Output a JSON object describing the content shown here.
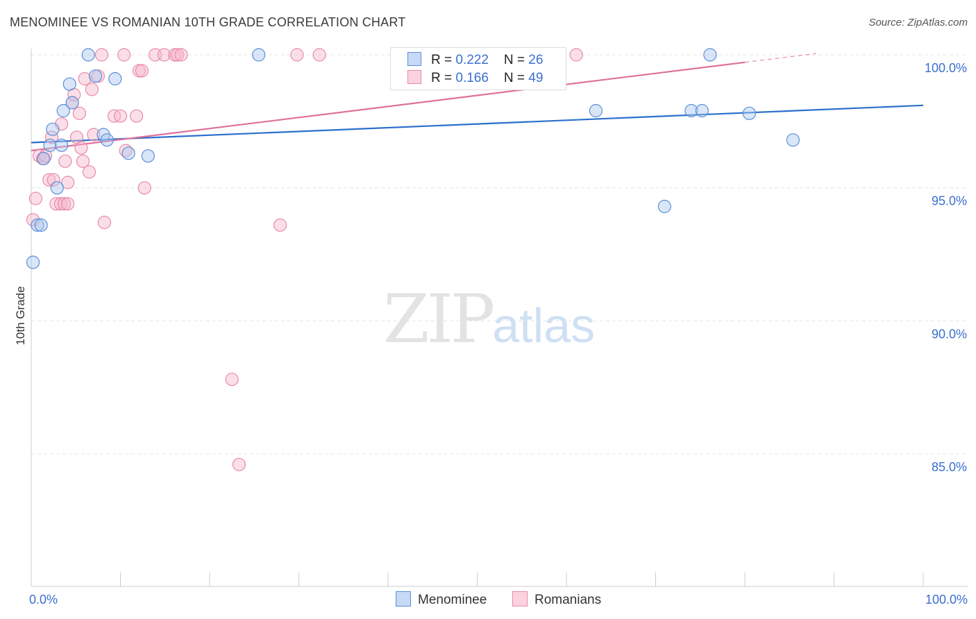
{
  "title": "MENOMINEE VS ROMANIAN 10TH GRADE CORRELATION CHART",
  "source": "Source: ZipAtlas.com",
  "watermark": {
    "zip": "ZIP",
    "atlas": "atlas"
  },
  "legend": {
    "rows": [
      {
        "r_label": "R = ",
        "r_value": "0.222",
        "n_label": "N = ",
        "n_value": "26"
      },
      {
        "r_label": "R = ",
        "r_value": "0.166",
        "n_label": "N = ",
        "n_value": "49"
      }
    ]
  },
  "bottom_legend": {
    "menominee": "Menominee",
    "romanians": "Romanians"
  },
  "colors": {
    "blue_fill": "#aac8f0",
    "blue_stroke": "#5b8ed6",
    "blue_line": "#2a6fcc",
    "pink_fill": "#f7b9cc",
    "pink_stroke": "#e88aa8",
    "pink_line": "#e0709a",
    "grid": "#e4e4e4",
    "tick_text": "#3a6fd0"
  },
  "chart_data": {
    "type": "scatter",
    "title": "MENOMINEE VS ROMANIAN 10TH GRADE CORRELATION CHART",
    "xlabel": "",
    "ylabel": "10th Grade",
    "xlim": [
      0,
      100
    ],
    "ylim": [
      80.5,
      100.7
    ],
    "x_tick_labels": [
      "0.0%",
      "100.0%"
    ],
    "y_ticks": [
      {
        "value": 100,
        "label": "100.0%"
      },
      {
        "value": 95,
        "label": "95.0%"
      },
      {
        "value": 90,
        "label": "90.0%"
      },
      {
        "value": 85,
        "label": "85.0%"
      }
    ],
    "series": [
      {
        "name": "Menominee",
        "color": "blue",
        "r": 0.222,
        "n": 26,
        "trend": {
          "x": [
            0,
            100
          ],
          "y": [
            96.7,
            98.1
          ]
        },
        "points": [
          {
            "x": 0.2,
            "y": 92.2
          },
          {
            "x": 0.7,
            "y": 93.6
          },
          {
            "x": 1.1,
            "y": 93.6
          },
          {
            "x": 1.4,
            "y": 96.1
          },
          {
            "x": 2.1,
            "y": 96.6
          },
          {
            "x": 2.4,
            "y": 97.2
          },
          {
            "x": 2.9,
            "y": 95.0
          },
          {
            "x": 3.4,
            "y": 96.6
          },
          {
            "x": 3.6,
            "y": 97.9
          },
          {
            "x": 4.3,
            "y": 98.9
          },
          {
            "x": 4.6,
            "y": 98.2
          },
          {
            "x": 6.4,
            "y": 100.0
          },
          {
            "x": 7.2,
            "y": 99.2
          },
          {
            "x": 8.1,
            "y": 97.0
          },
          {
            "x": 8.5,
            "y": 96.8
          },
          {
            "x": 9.4,
            "y": 99.1
          },
          {
            "x": 10.9,
            "y": 96.3
          },
          {
            "x": 13.1,
            "y": 96.2
          },
          {
            "x": 25.5,
            "y": 100.0
          },
          {
            "x": 63.3,
            "y": 97.9
          },
          {
            "x": 71.0,
            "y": 94.3
          },
          {
            "x": 74.0,
            "y": 97.9
          },
          {
            "x": 75.2,
            "y": 97.9
          },
          {
            "x": 76.1,
            "y": 100.0
          },
          {
            "x": 80.5,
            "y": 97.8
          },
          {
            "x": 85.4,
            "y": 96.8
          }
        ]
      },
      {
        "name": "Romanians",
        "color": "pink",
        "r": 0.166,
        "n": 49,
        "trend": {
          "x": [
            0,
            88
          ],
          "y": [
            96.4,
            100.05
          ],
          "solid_until": 80
        },
        "points": [
          {
            "x": 0.2,
            "y": 93.8
          },
          {
            "x": 0.5,
            "y": 94.6
          },
          {
            "x": 0.9,
            "y": 96.2
          },
          {
            "x": 1.3,
            "y": 96.1
          },
          {
            "x": 1.6,
            "y": 96.2
          },
          {
            "x": 2.0,
            "y": 95.3
          },
          {
            "x": 2.3,
            "y": 96.9
          },
          {
            "x": 2.5,
            "y": 95.3
          },
          {
            "x": 2.8,
            "y": 94.4
          },
          {
            "x": 3.3,
            "y": 94.4
          },
          {
            "x": 3.4,
            "y": 97.4
          },
          {
            "x": 3.7,
            "y": 94.4
          },
          {
            "x": 3.8,
            "y": 96.0
          },
          {
            "x": 4.1,
            "y": 95.2
          },
          {
            "x": 4.1,
            "y": 94.4
          },
          {
            "x": 4.6,
            "y": 98.2
          },
          {
            "x": 4.8,
            "y": 98.5
          },
          {
            "x": 5.1,
            "y": 96.9
          },
          {
            "x": 5.4,
            "y": 97.8
          },
          {
            "x": 5.6,
            "y": 96.5
          },
          {
            "x": 5.8,
            "y": 96.0
          },
          {
            "x": 6.0,
            "y": 99.1
          },
          {
            "x": 6.5,
            "y": 95.6
          },
          {
            "x": 6.8,
            "y": 98.7
          },
          {
            "x": 7.0,
            "y": 97.0
          },
          {
            "x": 7.5,
            "y": 99.2
          },
          {
            "x": 7.9,
            "y": 100.0
          },
          {
            "x": 8.2,
            "y": 93.7
          },
          {
            "x": 9.3,
            "y": 97.7
          },
          {
            "x": 10.0,
            "y": 97.7
          },
          {
            "x": 10.6,
            "y": 96.4
          },
          {
            "x": 10.4,
            "y": 100.0
          },
          {
            "x": 11.8,
            "y": 97.7
          },
          {
            "x": 12.1,
            "y": 99.4
          },
          {
            "x": 12.4,
            "y": 99.4
          },
          {
            "x": 12.7,
            "y": 95.0
          },
          {
            "x": 13.9,
            "y": 100.0
          },
          {
            "x": 14.9,
            "y": 100.0
          },
          {
            "x": 16.1,
            "y": 100.0
          },
          {
            "x": 16.4,
            "y": 100.0
          },
          {
            "x": 16.8,
            "y": 100.0
          },
          {
            "x": 22.5,
            "y": 87.8
          },
          {
            "x": 23.3,
            "y": 84.6
          },
          {
            "x": 27.9,
            "y": 93.6
          },
          {
            "x": 29.8,
            "y": 100.0
          },
          {
            "x": 32.3,
            "y": 100.0
          },
          {
            "x": 54.8,
            "y": 100.0
          },
          {
            "x": 55.0,
            "y": 100.0
          },
          {
            "x": 61.1,
            "y": 100.0
          }
        ]
      }
    ]
  }
}
